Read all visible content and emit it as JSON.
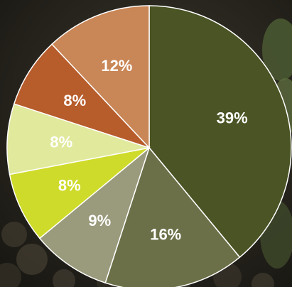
{
  "chart_data": {
    "type": "pie",
    "title": "",
    "start": "top",
    "direction": "clockwise",
    "slices": [
      {
        "label": "39%",
        "value": 39,
        "color": "#4a5424"
      },
      {
        "label": "16%",
        "value": 16,
        "color": "#6c7048"
      },
      {
        "label": "9%",
        "value": 9,
        "color": "#9a9a7c"
      },
      {
        "label": "8%",
        "value": 8,
        "color": "#cfdb2a"
      },
      {
        "label": "8%",
        "value": 8,
        "color": "#e1e99c"
      },
      {
        "label": "8%",
        "value": 8,
        "color": "#b75c2b"
      },
      {
        "label": "12%",
        "value": 12,
        "color": "#c98656"
      }
    ]
  }
}
